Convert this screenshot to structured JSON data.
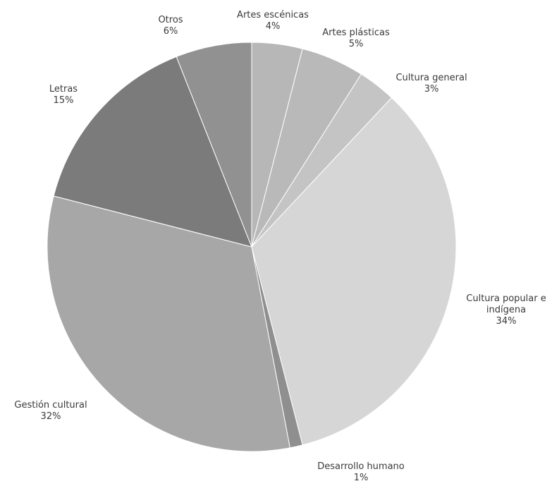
{
  "chart_data": {
    "type": "pie",
    "slices": [
      {
        "label": "Artes escénicas",
        "value": 4,
        "value_label": "4%",
        "color": "#b7b7b7"
      },
      {
        "label": "Artes plásticas",
        "value": 5,
        "value_label": "5%",
        "color": "#b9b9b9"
      },
      {
        "label": "Cultura general",
        "value": 3,
        "value_label": "3%",
        "color": "#c4c4c4"
      },
      {
        "label": "Cultura popular e indígena",
        "label_lines": [
          "Cultura popular e",
          "indígena"
        ],
        "value": 34,
        "value_label": "34%",
        "color": "#d6d6d6"
      },
      {
        "label": "Desarrollo humano",
        "value": 1,
        "value_label": "1%",
        "color": "#8f8f8f"
      },
      {
        "label": "Gestión cultural",
        "value": 32,
        "value_label": "32%",
        "color": "#a7a7a7"
      },
      {
        "label": "Letras",
        "value": 15,
        "value_label": "15%",
        "color": "#7b7b7b"
      },
      {
        "label": "Otros",
        "value": 6,
        "value_label": "6%",
        "color": "#919191"
      }
    ],
    "start_angle_deg": 0,
    "direction": "clockwise",
    "legend": "none"
  }
}
